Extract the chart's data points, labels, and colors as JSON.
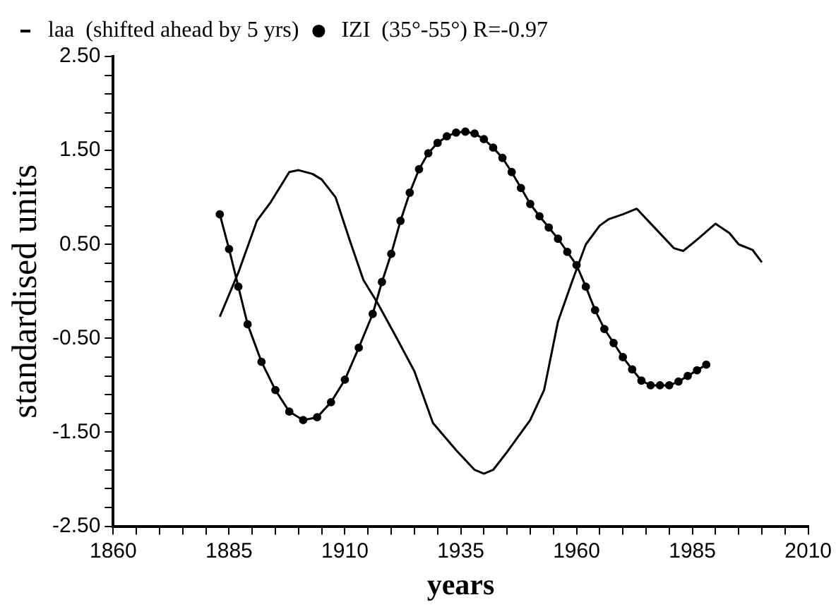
{
  "chart_data": {
    "type": "line",
    "xlabel": "years",
    "ylabel": "standardised units",
    "xlim": [
      1860,
      2010
    ],
    "xticks": [
      1860,
      {
        "value": 1865,
        "label": null
      },
      {
        "value": 1870,
        "label": null
      },
      {
        "value": 1875,
        "label": null
      },
      {
        "value": 1880,
        "label": null
      },
      1885,
      {
        "value": 1890,
        "label": null
      },
      {
        "value": 1895,
        "label": null
      },
      {
        "value": 1900,
        "label": null
      },
      {
        "value": 1905,
        "label": null
      },
      1910,
      {
        "value": 1915,
        "label": null
      },
      {
        "value": 1920,
        "label": null
      },
      {
        "value": 1925,
        "label": null
      },
      {
        "value": 1930,
        "label": null
      },
      1935,
      {
        "value": 1940,
        "label": null
      },
      {
        "value": 1945,
        "label": null
      },
      {
        "value": 1950,
        "label": null
      },
      {
        "value": 1955,
        "label": null
      },
      1960,
      {
        "value": 1965,
        "label": null
      },
      {
        "value": 1970,
        "label": null
      },
      {
        "value": 1975,
        "label": null
      },
      {
        "value": 1980,
        "label": null
      },
      1985,
      {
        "value": 1990,
        "label": null
      },
      {
        "value": 1995,
        "label": null
      },
      {
        "value": 2000,
        "label": null
      },
      {
        "value": 2005,
        "label": null
      },
      2010
    ],
    "ylim": [
      -2.5,
      2.5
    ],
    "yticks": [
      {
        "value": 2.5,
        "label": "2.50"
      },
      {
        "value": 2.3,
        "label": null
      },
      {
        "value": 2.1,
        "label": null
      },
      {
        "value": 1.9,
        "label": null
      },
      {
        "value": 1.7,
        "label": null
      },
      {
        "value": 1.5,
        "label": "1.50"
      },
      {
        "value": 1.3,
        "label": null
      },
      {
        "value": 1.1,
        "label": null
      },
      {
        "value": 0.9,
        "label": null
      },
      {
        "value": 0.7,
        "label": null
      },
      {
        "value": 0.5,
        "label": "0.50"
      },
      {
        "value": 0.3,
        "label": null
      },
      {
        "value": 0.1,
        "label": null
      },
      {
        "value": -0.1,
        "label": null
      },
      {
        "value": -0.3,
        "label": null
      },
      {
        "value": -0.5,
        "label": "-0.50"
      },
      {
        "value": -0.7,
        "label": null
      },
      {
        "value": -0.9,
        "label": null
      },
      {
        "value": -1.1,
        "label": null
      },
      {
        "value": -1.3,
        "label": null
      },
      {
        "value": -1.5,
        "label": "-1.50"
      },
      {
        "value": -1.7,
        "label": null
      },
      {
        "value": -1.9,
        "label": null
      },
      {
        "value": -2.1,
        "label": null
      },
      {
        "value": -2.3,
        "label": null
      },
      {
        "value": -2.5,
        "label": "-2.50"
      }
    ],
    "grid": false,
    "legend": "top left",
    "line_style": "solid",
    "series": [
      {
        "name": "laa  (shifted ahead by 5 yrs)",
        "color": "#000000",
        "marker": "none",
        "x": [
          1883,
          1887,
          1891,
          1894,
          1898,
          1900,
          1903,
          1905,
          1908,
          1911,
          1914,
          1917,
          1921,
          1925,
          1929,
          1934,
          1938,
          1940,
          1942,
          1945,
          1950,
          1953,
          1956,
          1959,
          1962,
          1965,
          1967,
          1970,
          1973,
          1977,
          1981,
          1983,
          1986,
          1990,
          1993,
          1995,
          1998,
          2000
        ],
        "values": [
          -0.27,
          0.2,
          0.75,
          0.95,
          1.27,
          1.29,
          1.25,
          1.19,
          1.0,
          0.55,
          0.12,
          -0.12,
          -0.48,
          -0.85,
          -1.4,
          -1.69,
          -1.9,
          -1.94,
          -1.9,
          -1.71,
          -1.37,
          -1.05,
          -0.32,
          0.1,
          0.5,
          0.7,
          0.77,
          0.82,
          0.88,
          0.67,
          0.46,
          0.43,
          0.55,
          0.72,
          0.62,
          0.5,
          0.44,
          0.31
        ]
      },
      {
        "name": "IZI  (35°-55°) R=-0.97",
        "color": "#000000",
        "marker": "circle",
        "x": [
          1883,
          1885,
          1887,
          1889,
          1892,
          1895,
          1898,
          1901,
          1904,
          1907,
          1910,
          1913,
          1916,
          1918,
          1920,
          1922,
          1924,
          1926,
          1928,
          1930,
          1932,
          1934,
          1936,
          1938,
          1940,
          1942,
          1944,
          1946,
          1948,
          1950,
          1952,
          1954,
          1956,
          1958,
          1960,
          1962,
          1964,
          1966,
          1968,
          1970,
          1972,
          1974,
          1976,
          1978,
          1980,
          1982,
          1984,
          1986,
          1988
        ],
        "values": [
          0.82,
          0.45,
          0.05,
          -0.35,
          -0.75,
          -1.05,
          -1.28,
          -1.37,
          -1.34,
          -1.18,
          -0.94,
          -0.6,
          -0.24,
          0.1,
          0.4,
          0.75,
          1.05,
          1.3,
          1.47,
          1.58,
          1.65,
          1.69,
          1.7,
          1.68,
          1.62,
          1.53,
          1.42,
          1.27,
          1.1,
          0.93,
          0.8,
          0.68,
          0.56,
          0.42,
          0.28,
          0.05,
          -0.2,
          -0.4,
          -0.55,
          -0.7,
          -0.83,
          -0.95,
          -1.0,
          -1.0,
          -1.0,
          -0.96,
          -0.9,
          -0.84,
          -0.78
        ]
      }
    ]
  }
}
